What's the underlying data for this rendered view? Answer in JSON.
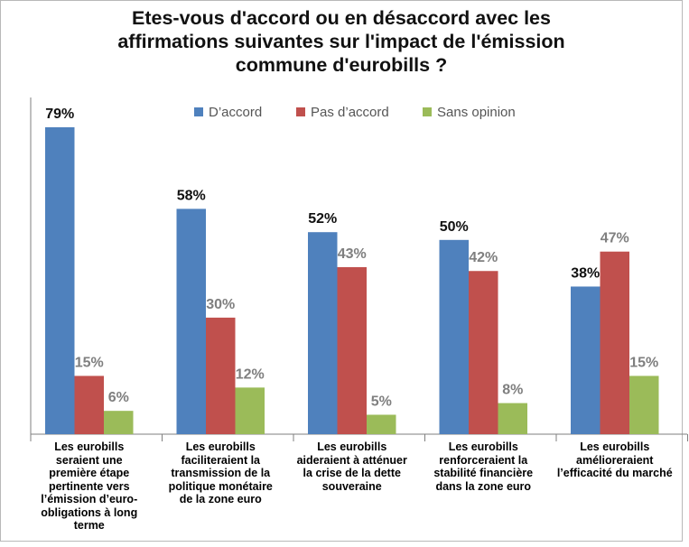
{
  "chart_data": {
    "type": "bar",
    "title_lines": [
      "Etes-vous d'accord ou en désaccord avec les",
      "affirmations suivantes sur l'impact de l'émission",
      "commune d'eurobills ?"
    ],
    "categories": [
      "Les eurobills seraient une première étape pertinente vers l’émission d’euro-obligations à long terme",
      "Les eurobills faciliteraient la transmission de la politique monétaire de la zone euro",
      "Les eurobills aideraient à atténuer la crise de la dette souveraine",
      "Les eurobills renforceraient la stabilité financière dans la zone euro",
      "Les eurobills amélioreraient l’efficacité du marché"
    ],
    "series": [
      {
        "name": "D’accord",
        "values": [
          79,
          58,
          52,
          50,
          38
        ],
        "labels": [
          "79%",
          "58%",
          "52%",
          "50%",
          "38%"
        ],
        "color": "#4f81bd",
        "label_color": "#111111"
      },
      {
        "name": "Pas d’accord",
        "values": [
          15,
          30,
          43,
          42,
          47
        ],
        "labels": [
          "15%",
          "30%",
          "43%",
          "42%",
          "47%"
        ],
        "color": "#c0504d",
        "label_color": "#7f7f7f"
      },
      {
        "name": "Sans opinion",
        "values": [
          6,
          12,
          5,
          8,
          15
        ],
        "labels": [
          "6%",
          "12%",
          "5%",
          "8%",
          "15%"
        ],
        "color": "#9bbb59",
        "label_color": "#7f7f7f"
      }
    ],
    "legend_position": "top",
    "ylim": [
      0,
      90
    ],
    "grid": false,
    "y_axis_visible": false
  }
}
